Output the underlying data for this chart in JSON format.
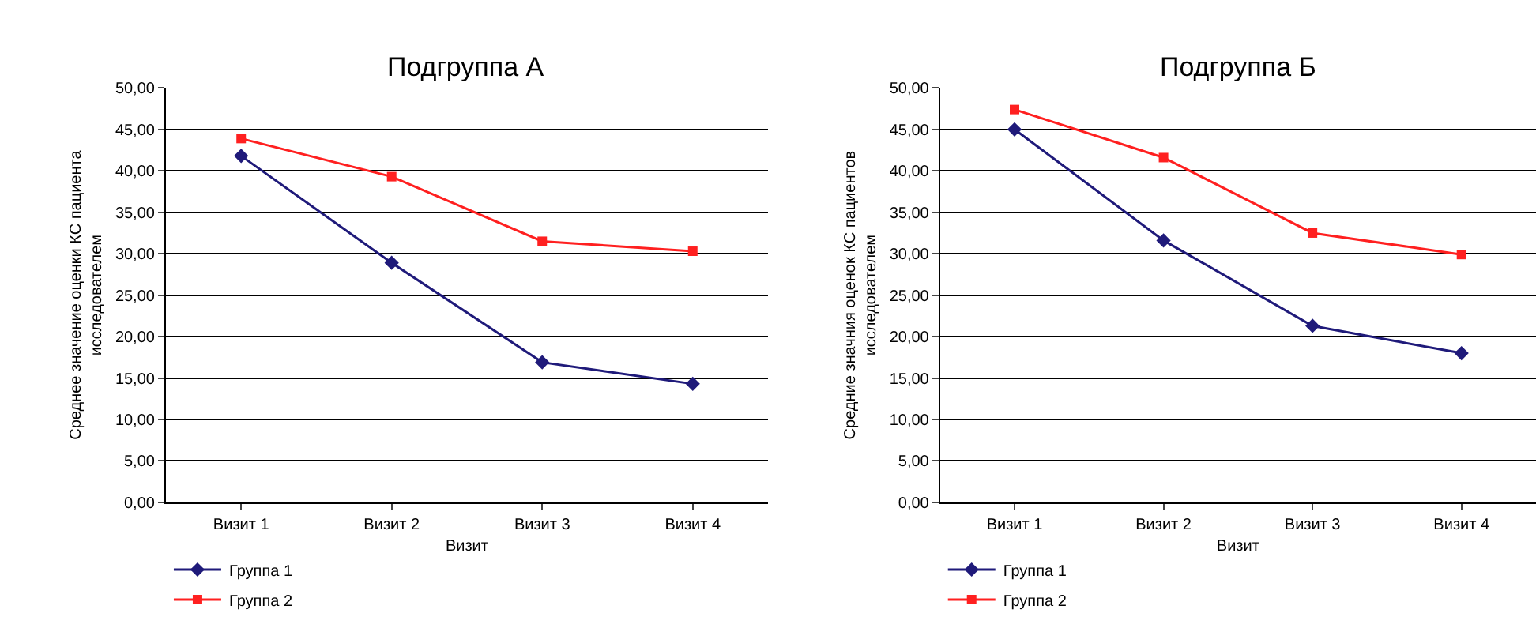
{
  "chart_data": [
    {
      "type": "line",
      "title": "Подгруппа А",
      "xlabel": "Визит",
      "ylabel": "Среднее значение оценки КС пациента\nисследователем",
      "categories": [
        "Визит 1",
        "Визит 2",
        "Визит 3",
        "Визит 4"
      ],
      "series": [
        {
          "name": "Группа 1",
          "color": "#1f1a7a",
          "marker": "diamond",
          "values": [
            41.8,
            28.9,
            16.9,
            14.3
          ]
        },
        {
          "name": "Группа 2",
          "color": "#ff2020",
          "marker": "square",
          "values": [
            43.9,
            39.3,
            31.5,
            30.3
          ]
        }
      ],
      "ylim": [
        0,
        50
      ],
      "yticks": [
        {
          "value": 0,
          "label": "0,00"
        },
        {
          "value": 5,
          "label": "5,00"
        },
        {
          "value": 10,
          "label": "10,00"
        },
        {
          "value": 15,
          "label": "15,00"
        },
        {
          "value": 20,
          "label": "20,00"
        },
        {
          "value": 25,
          "label": "25,00"
        },
        {
          "value": 30,
          "label": "30,00"
        },
        {
          "value": 35,
          "label": "35,00"
        },
        {
          "value": 40,
          "label": "40,00"
        },
        {
          "value": 45,
          "label": "45,00"
        },
        {
          "value": 50,
          "label": "50,00"
        }
      ],
      "grid": "y",
      "legend": "bottom left",
      "line_style": "solid"
    },
    {
      "type": "line",
      "title": "Подгруппа Б",
      "xlabel": "Визит",
      "ylabel": "Средние значния оценок КС пациентов\nисследователем",
      "categories": [
        "Визит 1",
        "Визит 2",
        "Визит 3",
        "Визит 4"
      ],
      "series": [
        {
          "name": "Группа 1",
          "color": "#1f1a7a",
          "marker": "diamond",
          "values": [
            45.0,
            31.6,
            21.3,
            18.0
          ]
        },
        {
          "name": "Группа 2",
          "color": "#ff2020",
          "marker": "square",
          "values": [
            47.4,
            41.6,
            32.5,
            29.9
          ]
        }
      ],
      "ylim": [
        0,
        50
      ],
      "yticks": [
        {
          "value": 0,
          "label": "0,00"
        },
        {
          "value": 5,
          "label": "5,00"
        },
        {
          "value": 10,
          "label": "10,00"
        },
        {
          "value": 15,
          "label": "15,00"
        },
        {
          "value": 20,
          "label": "20,00"
        },
        {
          "value": 25,
          "label": "25,00"
        },
        {
          "value": 30,
          "label": "30,00"
        },
        {
          "value": 35,
          "label": "35,00"
        },
        {
          "value": 40,
          "label": "40,00"
        },
        {
          "value": 45,
          "label": "45,00"
        },
        {
          "value": 50,
          "label": "50,00"
        }
      ],
      "grid": "y",
      "legend": "bottom left",
      "line_style": "solid"
    }
  ]
}
